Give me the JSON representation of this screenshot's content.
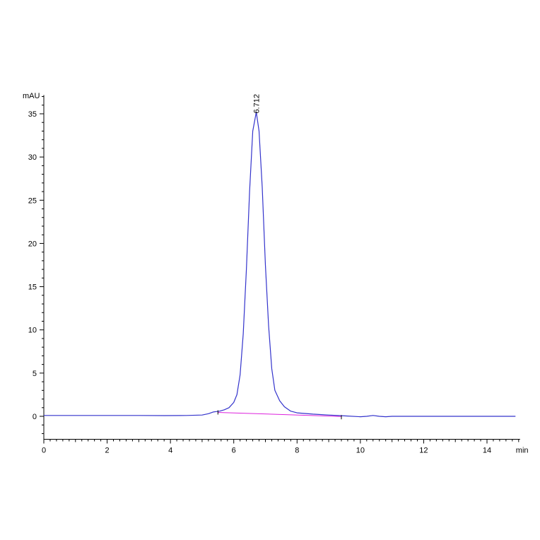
{
  "chart_data": {
    "type": "line",
    "ylabel": "mAU",
    "xlabel": "min",
    "xlim": [
      0,
      15
    ],
    "ylim": [
      -2,
      37
    ],
    "x_ticks": [
      0,
      2,
      4,
      6,
      8,
      10,
      12,
      14
    ],
    "y_ticks": [
      0,
      5,
      10,
      15,
      20,
      25,
      30,
      35
    ],
    "grid": false,
    "legend": "none",
    "colors": {
      "trace": "#3333cc",
      "baseline": "#dd22dd",
      "axis": "#000000"
    },
    "series": [
      {
        "x": [
          0,
          1,
          2,
          3,
          3.8,
          4.5,
          5.0,
          5.2,
          5.35,
          5.45,
          5.55,
          5.7,
          5.85,
          6.0,
          6.1,
          6.2,
          6.3,
          6.4,
          6.5,
          6.6,
          6.712,
          6.8,
          6.9,
          7.0,
          7.1,
          7.2,
          7.3,
          7.45,
          7.6,
          7.8,
          8.0,
          8.5,
          9.0,
          9.5,
          10.0,
          10.2,
          10.4,
          10.6,
          10.8,
          11.0,
          12.0,
          13.0,
          14.0,
          14.9
        ],
        "y": [
          0.1,
          0.1,
          0.1,
          0.1,
          0.08,
          0.1,
          0.15,
          0.3,
          0.5,
          0.55,
          0.6,
          0.75,
          1.0,
          1.6,
          2.5,
          4.8,
          9.5,
          17.0,
          26.0,
          33.0,
          35.2,
          33.0,
          26.5,
          17.5,
          10.5,
          5.5,
          3.0,
          1.8,
          1.1,
          0.6,
          0.4,
          0.25,
          0.15,
          0.05,
          -0.05,
          0.0,
          0.1,
          0.0,
          -0.05,
          0.0,
          0.0,
          0.0,
          0.0,
          0.0
        ]
      }
    ],
    "baseline": {
      "x": [
        5.5,
        9.4
      ],
      "y": [
        0.45,
        -0.02
      ]
    },
    "annotations": [
      {
        "label": "6.712",
        "x": 6.712,
        "y": 35.2
      }
    ]
  }
}
